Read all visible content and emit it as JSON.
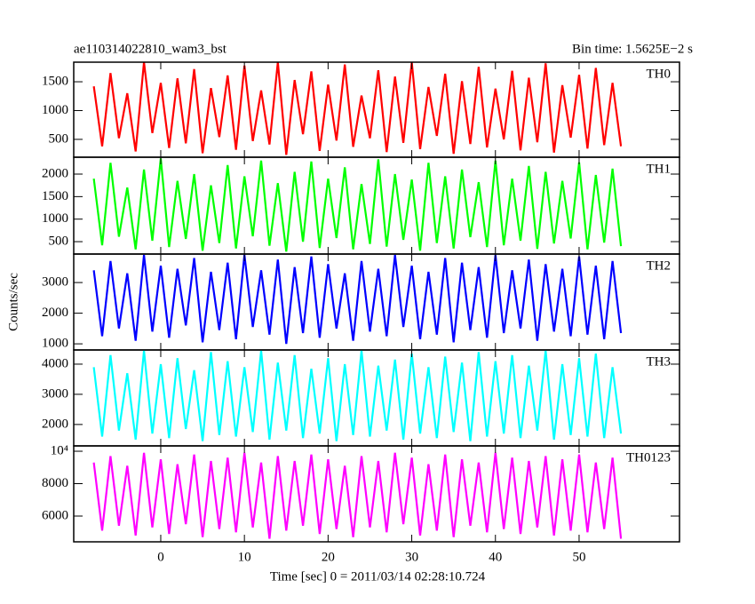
{
  "title": "ae110314022810_wam3_bst",
  "subtitle": "Bin time: 1.5625E−2 s",
  "xlabel": "Time [sec] 0 = 2011/03/14 02:28:10.724",
  "ylabel": "Counts/sec",
  "xlim": [
    -10.4,
    62
  ],
  "xticks": [
    0,
    10,
    20,
    30,
    40,
    50
  ],
  "x": [
    -8,
    -7,
    -6,
    -5,
    -4,
    -3,
    -2,
    -1,
    0,
    1,
    2,
    3,
    4,
    5,
    6,
    7,
    8,
    9,
    10,
    11,
    12,
    13,
    14,
    15,
    16,
    17,
    18,
    19,
    20,
    21,
    22,
    23,
    24,
    25,
    26,
    27,
    28,
    29,
    30,
    31,
    32,
    33,
    34,
    35,
    36,
    37,
    38,
    39,
    40,
    41,
    42,
    43,
    44,
    45,
    46,
    47,
    48,
    49,
    50,
    51,
    52,
    53,
    54,
    55
  ],
  "chart_data": [
    {
      "type": "line",
      "name": "TH0",
      "color": "#ff0000",
      "ylim": [
        190,
        1840
      ],
      "yticks": [
        500,
        1000,
        1500
      ],
      "values": [
        1420,
        380,
        1650,
        520,
        1300,
        290,
        1840,
        610,
        1480,
        350,
        1560,
        430,
        1720,
        260,
        1390,
        540,
        1610,
        320,
        1780,
        470,
        1350,
        410,
        1840,
        230,
        1530,
        590,
        1680,
        300,
        1450,
        480,
        1800,
        370,
        1260,
        520,
        1700,
        280,
        1590,
        440,
        1840,
        330,
        1410,
        560,
        1640,
        250,
        1510,
        420,
        1760,
        360,
        1380,
        500,
        1690,
        310,
        1570,
        450,
        1820,
        270,
        1440,
        530,
        1620,
        340,
        1740,
        400,
        1480,
        380
      ]
    },
    {
      "type": "line",
      "name": "TH1",
      "color": "#00ff00",
      "ylim": [
        225,
        2375
      ],
      "yticks": [
        500,
        1000,
        1500,
        2000
      ],
      "values": [
        1900,
        420,
        2250,
        610,
        1700,
        330,
        2100,
        520,
        2350,
        380,
        1850,
        560,
        2000,
        300,
        1750,
        470,
        2200,
        350,
        1950,
        620,
        2300,
        410,
        1800,
        280,
        2050,
        500,
        2280,
        360,
        1900,
        580,
        2150,
        330,
        1780,
        450,
        2330,
        390,
        2000,
        540,
        1880,
        300,
        2250,
        470,
        1950,
        350,
        2100,
        600,
        1820,
        380,
        2300,
        420,
        1900,
        520,
        2180,
        340,
        2050,
        460,
        1850,
        570,
        2260,
        330,
        1980,
        480,
        2120,
        400
      ]
    },
    {
      "type": "line",
      "name": "TH2",
      "color": "#0000ff",
      "ylim": [
        800,
        3930
      ],
      "yticks": [
        1000,
        2000,
        3000
      ],
      "values": [
        3400,
        1250,
        3700,
        1500,
        3300,
        1100,
        3900,
        1400,
        3550,
        1200,
        3450,
        1600,
        3800,
        1050,
        3350,
        1450,
        3650,
        1150,
        3900,
        1550,
        3400,
        1300,
        3750,
        1000,
        3500,
        1350,
        3850,
        1200,
        3600,
        1500,
        3300,
        1100,
        3700,
        1400,
        3450,
        1250,
        3900,
        1550,
        3550,
        1150,
        3350,
        1300,
        3800,
        1050,
        3650,
        1450,
        3500,
        1200,
        3900,
        1350,
        3400,
        1500,
        3750,
        1100,
        3600,
        1400,
        3450,
        1250,
        3850,
        1300,
        3550,
        1150,
        3700,
        1350
      ]
    },
    {
      "type": "line",
      "name": "TH3",
      "color": "#00ffff",
      "ylim": [
        1290,
        4470
      ],
      "yticks": [
        2000,
        3000,
        4000
      ],
      "values": [
        3900,
        1600,
        4300,
        1800,
        3700,
        1500,
        4450,
        1700,
        4000,
        1550,
        4200,
        1850,
        3800,
        1450,
        4400,
        1650,
        4100,
        1600,
        3900,
        1750,
        4450,
        1500,
        4050,
        1800,
        4300,
        1550,
        3850,
        1700,
        4200,
        1450,
        4000,
        1650,
        4450,
        1600,
        3950,
        1800,
        4150,
        1500,
        4350,
        1700,
        3900,
        1550,
        4250,
        1750,
        4050,
        1450,
        4400,
        1600,
        4100,
        1700,
        4300,
        1550,
        3950,
        1800,
        4450,
        1500,
        4000,
        1650,
        4200,
        1600,
        4350,
        1550,
        3900,
        1700
      ]
    },
    {
      "type": "line",
      "name": "TH0123",
      "color": "#ff00ff",
      "ylim": [
        4410,
        10330
      ],
      "yticks": [
        6000,
        8000,
        {
          "value": 10000,
          "label": "10⁴"
        }
      ],
      "values": [
        9300,
        5100,
        9700,
        5400,
        9100,
        4800,
        9900,
        5300,
        9500,
        4900,
        9200,
        5500,
        9800,
        4700,
        9400,
        5200,
        9600,
        5000,
        9900,
        5300,
        9300,
        4600,
        9700,
        5100,
        9400,
        5400,
        9800,
        4900,
        9500,
        5200,
        9100,
        4700,
        9700,
        5300,
        9400,
        5000,
        9900,
        5500,
        9600,
        4800,
        9200,
        5100,
        9800,
        4700,
        9500,
        5400,
        9300,
        5000,
        9900,
        5200,
        9600,
        4900,
        9400,
        5300,
        9700,
        4800,
        9500,
        5100,
        9800,
        5000,
        9300,
        5200,
        9600,
        4600
      ]
    }
  ]
}
